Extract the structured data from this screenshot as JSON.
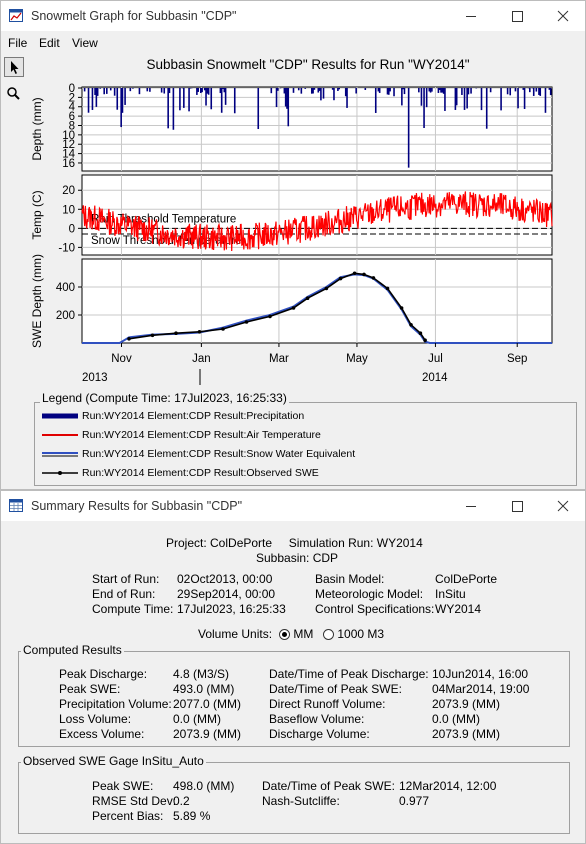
{
  "window1": {
    "title": "Snowmelt Graph for Subbasin \"CDP\"",
    "menu": [
      "File",
      "Edit",
      "View"
    ],
    "tools": [
      "pointer-tool",
      "zoom-tool"
    ]
  },
  "chart": {
    "title": "Subbasin Snowmelt \"CDP\" Results for Run \"WY2014\"",
    "x_ticks": [
      "Nov",
      "Jan",
      "Mar",
      "May",
      "Jul",
      "Sep"
    ],
    "year_labels": [
      "2013",
      "2014"
    ],
    "annotations": {
      "rain": "Rain Threshold Temperature",
      "snow": "Snow Threshold Temperature"
    }
  },
  "chart_data": [
    {
      "type": "bar",
      "ylabel": "Depth (mm)",
      "y_ticks": [
        "0",
        "2",
        "4",
        "6",
        "8",
        "10",
        "12",
        "14",
        "16"
      ],
      "ylim": [
        0,
        17.5
      ],
      "inverted": true,
      "series": [
        {
          "name": "Run:WY2014 Element:CDP Result:Precipitation",
          "color": "#000080"
        }
      ],
      "peak": 17
    },
    {
      "type": "line",
      "ylabel": "Temp (C)",
      "y_ticks": [
        "20",
        "10",
        "0",
        "-10"
      ],
      "ylim": [
        -14,
        28
      ],
      "thresholds": {
        "rain": 0,
        "snow": -3
      },
      "series": [
        {
          "name": "Run:WY2014 Element:CDP Result:Air Temperature",
          "color": "#ff0000"
        }
      ]
    },
    {
      "type": "line",
      "ylabel": "SWE Depth (mm)",
      "y_ticks": [
        "400",
        "200"
      ],
      "ylim": [
        0,
        600
      ],
      "series": [
        {
          "name": "Run:WY2014 Element:CDP Result:Snow Water Equivalent",
          "color": "#3050c0",
          "points": [
            [
              0,
              0
            ],
            [
              0.08,
              0
            ],
            [
              0.1,
              40
            ],
            [
              0.15,
              60
            ],
            [
              0.2,
              65
            ],
            [
              0.25,
              75
            ],
            [
              0.3,
              110
            ],
            [
              0.35,
              160
            ],
            [
              0.4,
              200
            ],
            [
              0.45,
              260
            ],
            [
              0.48,
              330
            ],
            [
              0.52,
              400
            ],
            [
              0.55,
              470
            ],
            [
              0.58,
              490
            ],
            [
              0.6,
              485
            ],
            [
              0.62,
              460
            ],
            [
              0.65,
              380
            ],
            [
              0.68,
              240
            ],
            [
              0.7,
              120
            ],
            [
              0.72,
              60
            ],
            [
              0.73,
              10
            ],
            [
              0.74,
              0
            ],
            [
              1,
              0
            ]
          ]
        },
        {
          "name": "Run:WY2014 Element:CDP Result:Observed SWE",
          "color": "#000000",
          "points": [
            [
              0.1,
              30
            ],
            [
              0.15,
              55
            ],
            [
              0.2,
              70
            ],
            [
              0.25,
              80
            ],
            [
              0.3,
              100
            ],
            [
              0.35,
              150
            ],
            [
              0.4,
              190
            ],
            [
              0.45,
              250
            ],
            [
              0.48,
              320
            ],
            [
              0.52,
              390
            ],
            [
              0.55,
              460
            ],
            [
              0.58,
              498
            ],
            [
              0.6,
              490
            ],
            [
              0.62,
              465
            ],
            [
              0.65,
              390
            ],
            [
              0.68,
              250
            ],
            [
              0.7,
              130
            ],
            [
              0.72,
              70
            ],
            [
              0.73,
              20
            ]
          ]
        }
      ]
    }
  ],
  "legend": {
    "title": "Legend (Compute Time: 17Jul2023, 16:25:33)",
    "items": [
      {
        "label": "Run:WY2014 Element:CDP Result:Precipitation",
        "color": "#000080",
        "style": "thick"
      },
      {
        "label": "Run:WY2014 Element:CDP Result:Air Temperature",
        "color": "#e00000",
        "style": "line"
      },
      {
        "label": "Run:WY2014 Element:CDP Result:Snow Water Equivalent",
        "color": "#3050c0",
        "style": "double"
      },
      {
        "label": "Run:WY2014 Element:CDP Result:Observed SWE",
        "color": "#000000",
        "style": "marker"
      }
    ]
  },
  "window2": {
    "title": "Summary Results for Subbasin \"CDP\"",
    "project_line": "Project: ColDePorte     Simulation Run: WY2014",
    "subbasin_line": "Subbasin: CDP",
    "start_label": "Start of Run:",
    "start_value": "02Oct2013, 00:00",
    "end_label": "End of Run:",
    "end_value": "29Sep2014, 00:00",
    "compute_label": "Compute Time:",
    "compute_value": "17Jul2023, 16:25:33",
    "basin_label": "Basin Model:",
    "basin_value": "ColDePorte",
    "met_label": "Meteorologic Model:",
    "met_value": "InSitu",
    "control_label": "Control Specifications:",
    "control_value": "WY2014",
    "units_label": "Volume Units:",
    "units_options": [
      "MM",
      "1000 M3"
    ],
    "units_selected": "MM",
    "computed": {
      "title": "Computed Results",
      "rows": [
        [
          "Peak Discharge:",
          "4.8 (M3/S)",
          "Date/Time of Peak Discharge:",
          "10Jun2014, 16:00"
        ],
        [
          "Peak SWE:",
          "493.0 (MM)",
          "Date/Time of Peak SWE:",
          "04Mar2014, 19:00"
        ],
        [
          "Precipitation Volume:",
          "2077.0 (MM)",
          "Direct Runoff Volume:",
          "2073.9 (MM)"
        ],
        [
          "Loss Volume:",
          "0.0 (MM)",
          "Baseflow Volume:",
          "0.0 (MM)"
        ],
        [
          "Excess Volume:",
          "2073.9 (MM)",
          "Discharge Volume:",
          "2073.9 (MM)"
        ]
      ]
    },
    "observed": {
      "title": "Observed SWE Gage InSitu_Auto",
      "peak_label": "Peak SWE:",
      "peak_value": "498.0 (MM)",
      "date_label": "Date/Time of Peak SWE:",
      "date_value": "12Mar2014, 12:00",
      "rmse_label": "RMSE Std Dev:",
      "rmse_value": "0.2",
      "nash_label": "Nash-Sutcliffe:",
      "nash_value": "0.977",
      "bias_label": "Percent Bias:",
      "bias_value": "5.89 %"
    }
  }
}
